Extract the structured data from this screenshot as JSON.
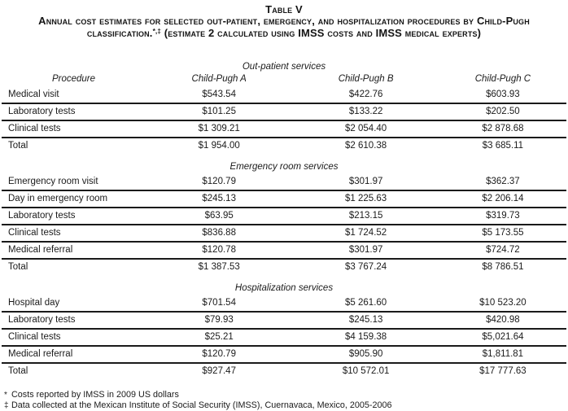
{
  "caption": {
    "table_number": "Table V",
    "line1": "Annual cost estimates for selected out-patient, emergency, and hospitalization procedures by Child-Pugh",
    "line2_pre": "classification.",
    "line2_sup": "*,‡",
    "line2_post": " (estimate 2 calculated using IMSS costs and IMSS medical experts)"
  },
  "table": {
    "columns": [
      "Procedure",
      "Child-Pugh A",
      "Child-Pugh B",
      "Child-Pugh C"
    ],
    "sections": [
      {
        "title": "Out-patient services",
        "show_column_headers": true,
        "rows": [
          {
            "procedure": "Medical visit",
            "values": [
              "$543.54",
              "$422.76",
              "$603.93"
            ],
            "is_total": false
          },
          {
            "procedure": "Laboratory tests",
            "values": [
              "$101.25",
              "$133.22",
              "$202.50"
            ],
            "is_total": false
          },
          {
            "procedure": "Clinical tests",
            "values": [
              "$1 309.21",
              "$2 054.40",
              "$2 878.68"
            ],
            "is_total": false
          },
          {
            "procedure": "Total",
            "values": [
              "$1 954.00",
              "$2 610.38",
              "$3 685.11"
            ],
            "is_total": true
          }
        ]
      },
      {
        "title": "Emergency room services",
        "show_column_headers": false,
        "rows": [
          {
            "procedure": "Emergency room visit",
            "values": [
              "$120.79",
              "$301.97",
              "$362.37"
            ],
            "is_total": false
          },
          {
            "procedure": "Day in emergency room",
            "values": [
              "$245.13",
              "$1 225.63",
              "$2 206.14"
            ],
            "is_total": false
          },
          {
            "procedure": "Laboratory tests",
            "values": [
              "$63.95",
              "$213.15",
              "$319.73"
            ],
            "is_total": false
          },
          {
            "procedure": "Clinical tests",
            "values": [
              "$836.88",
              "$1 724.52",
              "$5 173.55"
            ],
            "is_total": false
          },
          {
            "procedure": "Medical referral",
            "values": [
              "$120.78",
              "$301.97",
              "$724.72"
            ],
            "is_total": false
          },
          {
            "procedure": "Total",
            "values": [
              "$1 387.53",
              "$3 767.24",
              "$8 786.51"
            ],
            "is_total": true
          }
        ]
      },
      {
        "title": "Hospitalization services",
        "show_column_headers": false,
        "rows": [
          {
            "procedure": "Hospital day",
            "values": [
              "$701.54",
              "$5 261.60",
              "$10 523.20"
            ],
            "is_total": false
          },
          {
            "procedure": "Laboratory tests",
            "values": [
              "$79.93",
              "$245.13",
              "$420.98"
            ],
            "is_total": false
          },
          {
            "procedure": "Clinical tests",
            "values": [
              "$25.21",
              "$4 159.38",
              "$5,021.64"
            ],
            "is_total": false
          },
          {
            "procedure": "Medical referral",
            "values": [
              "$120.79",
              "$905.90",
              "$1,811.81"
            ],
            "is_total": false
          },
          {
            "procedure": "Total",
            "values": [
              "$927.47",
              "$10 572.01",
              "$17 777.63"
            ],
            "is_total": true
          }
        ]
      }
    ]
  },
  "footnotes": [
    {
      "symbol": "*",
      "text": "Costs reported by IMSS in 2009 US dollars"
    },
    {
      "symbol": "‡",
      "text": "Data collected at the Mexican Institute of Social Security (IMSS), Cuernavaca, Mexico, 2005-2006"
    }
  ]
}
